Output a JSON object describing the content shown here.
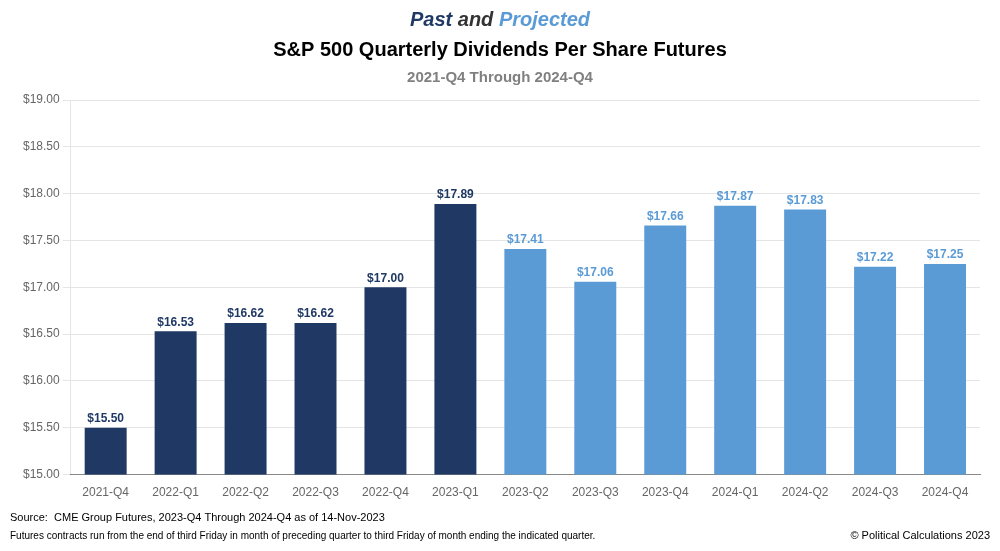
{
  "chart_data": {
    "type": "bar",
    "title": "Past and Projected",
    "subtitle": [
      "S&P 500 Quarterly Dividends Per Share Futures",
      "2021-Q4 Through 2024-Q4"
    ],
    "categories": [
      "2021-Q4",
      "2022-Q1",
      "2022-Q2",
      "2022-Q3",
      "2022-Q4",
      "2023-Q1",
      "2023-Q2",
      "2023-Q3",
      "2023-Q4",
      "2024-Q1",
      "2024-Q2",
      "2024-Q3",
      "2024-Q4"
    ],
    "values": [
      15.5,
      16.53,
      16.62,
      16.62,
      17.0,
      17.89,
      17.41,
      17.06,
      17.66,
      17.87,
      17.83,
      17.22,
      17.25
    ],
    "value_labels": [
      "$15.50",
      "$16.53",
      "$16.62",
      "$16.62",
      "$17.00",
      "$17.89",
      "$17.41",
      "$17.06",
      "$17.66",
      "$17.87",
      "$17.83",
      "$17.22",
      "$17.25"
    ],
    "colors": [
      "#1F3864",
      "#1F3864",
      "#1F3864",
      "#1F3864",
      "#1F3864",
      "#1F3864",
      "#5B9BD5",
      "#5B9BD5",
      "#5B9BD5",
      "#5B9BD5",
      "#5B9BD5",
      "#5B9BD5",
      "#5B9BD5"
    ],
    "data_labels": true,
    "ylim": [
      15.0,
      19.0
    ],
    "yticks": [
      {
        "value": 15.0,
        "label": "$15.00"
      },
      {
        "value": 15.5,
        "label": "$15.50"
      },
      {
        "value": 16.0,
        "label": "$16.00"
      },
      {
        "value": 16.5,
        "label": "$16.50"
      },
      {
        "value": 17.0,
        "label": "$17.00"
      },
      {
        "value": 17.5,
        "label": "$17.50"
      },
      {
        "value": 18.0,
        "label": "$18.00"
      },
      {
        "value": 18.5,
        "label": "$18.50"
      },
      {
        "value": 19.0,
        "label": "$19.00"
      }
    ],
    "grid": true,
    "annotations": [
      "Source:  CME Group Futures, 2023-Q4 Through 2024-Q4 as of 14-Nov-2023",
      "Futures contracts run from the end of third Friday in month of preceding quarter to third Friday of month ending the indicated quarter.",
      "© Political Calculations 2023"
    ]
  }
}
